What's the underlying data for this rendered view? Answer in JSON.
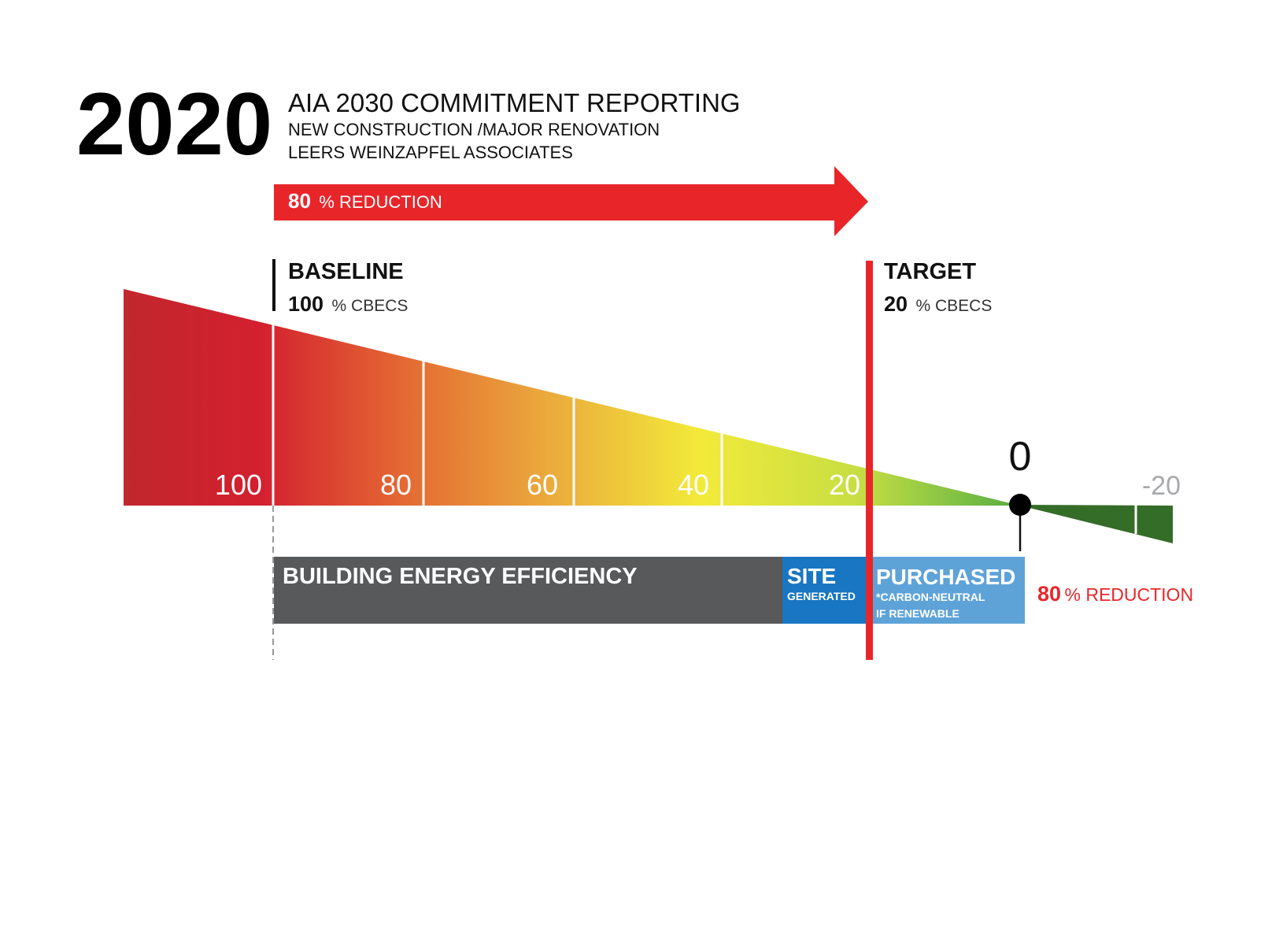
{
  "header": {
    "year": "2020",
    "title": "AIA 2030 COMMITMENT REPORTING",
    "subtitle1": "NEW CONSTRUCTION /MAJOR RENOVATION",
    "subtitle2": "LEERS WEINZAPFEL ASSOCIATES"
  },
  "arrow": {
    "value": "80",
    "unit": "% REDUCTION"
  },
  "baseline": {
    "title": "BASELINE",
    "value": "100",
    "unit": "% CBECS"
  },
  "target": {
    "title": "TARGET",
    "value": "20",
    "unit": "% CBECS"
  },
  "scale": {
    "ticks": [
      "100",
      "80",
      "60",
      "40",
      "20"
    ],
    "zero": "0",
    "negative": "-20"
  },
  "bars": {
    "efficiency": "BUILDING ENERGY EFFICIENCY",
    "site_title": "SITE",
    "site_sub": "GENERATED",
    "purchased_title": "PURCHASED",
    "purchased_sub1": "*CARBON-NEUTRAL",
    "purchased_sub2": "IF RENEWABLE"
  },
  "reduction": {
    "value": "80",
    "unit": "% REDUCTION"
  },
  "colors": {
    "red": "#e8262a",
    "gray_bar": "#58595b",
    "site_blue": "#1976c2",
    "purchased_blue": "#5ea3d8"
  }
}
